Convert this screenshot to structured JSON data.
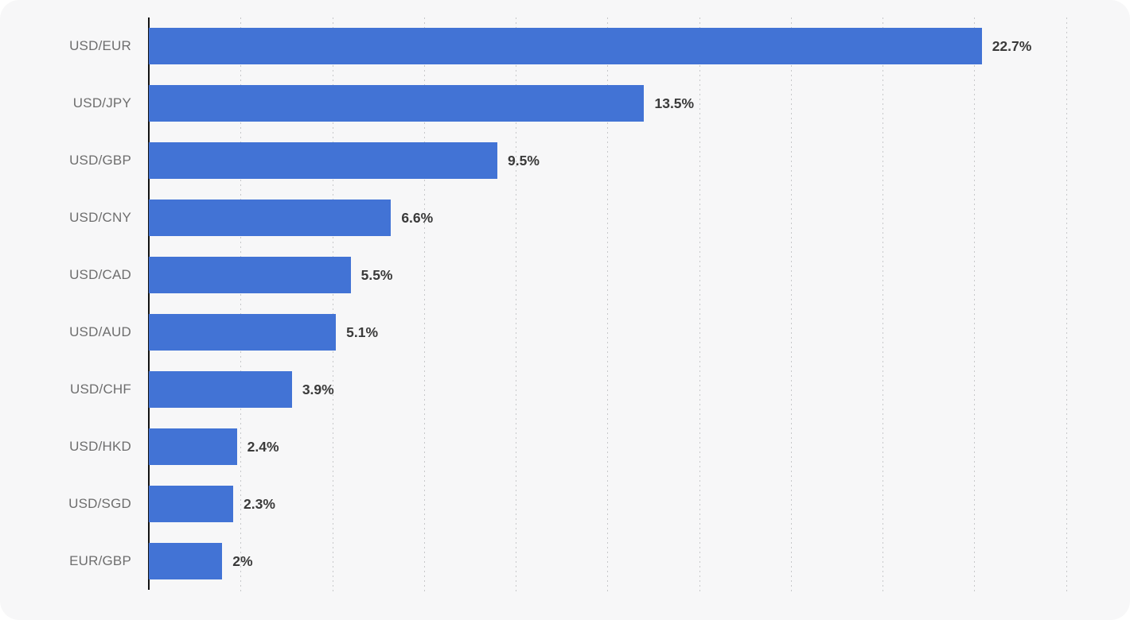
{
  "chart_data": {
    "type": "bar",
    "orientation": "horizontal",
    "title": "",
    "xlabel": "",
    "ylabel": "",
    "categories": [
      "USD/EUR",
      "USD/JPY",
      "USD/GBP",
      "USD/CNY",
      "USD/CAD",
      "USD/AUD",
      "USD/CHF",
      "USD/HKD",
      "USD/SGD",
      "EUR/GBP"
    ],
    "values": [
      22.7,
      13.5,
      9.5,
      6.6,
      5.5,
      5.1,
      3.9,
      2.4,
      2.3,
      2.0
    ],
    "value_labels": [
      "22.7%",
      "13.5%",
      "9.5%",
      "6.6%",
      "5.5%",
      "5.1%",
      "3.9%",
      "2.4%",
      "2.3%",
      "2%"
    ],
    "xlim": [
      0,
      26.74
    ],
    "gridline_values": [
      2.5,
      5,
      7.5,
      10,
      12.5,
      15,
      17.5,
      20,
      22.5,
      25
    ],
    "grid": "vertical-dotted",
    "legend": "none",
    "colors": {
      "bar": "#4273d5",
      "category_label": "#6e6e6e",
      "value_label": "#3a3a3a",
      "gridline": "#c7c8ca",
      "axis": "#131313",
      "card_background": "#f7f7f8",
      "page_background": "#ffffff"
    }
  }
}
